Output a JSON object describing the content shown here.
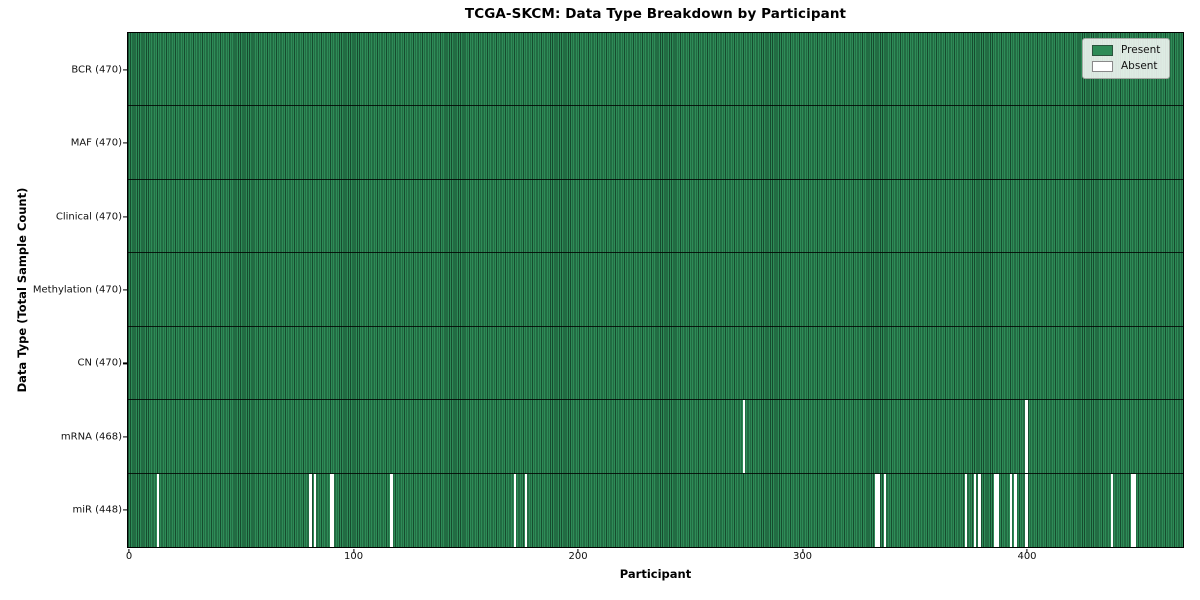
{
  "chart_data": {
    "type": "heatmap",
    "title": "TCGA-SKCM: Data Type Breakdown by Participant",
    "xlabel": "Participant",
    "ylabel": "Data Type (Total Sample Count)",
    "x_ticks": [
      0,
      100,
      200,
      300,
      400
    ],
    "x_range": [
      -0.5,
      469.5
    ],
    "n_participants": 470,
    "grid": false,
    "legend": {
      "position": "upper right",
      "entries": [
        {
          "label": "Present",
          "color": "#2e8b57"
        },
        {
          "label": "Absent",
          "color": "#ffffff"
        }
      ]
    },
    "rows": [
      {
        "label": "BCR (470)",
        "data_type": "BCR",
        "present_count": 470,
        "absent_participants": []
      },
      {
        "label": "MAF (470)",
        "data_type": "MAF",
        "present_count": 470,
        "absent_participants": []
      },
      {
        "label": "Clinical (470)",
        "data_type": "Clinical",
        "present_count": 470,
        "absent_participants": []
      },
      {
        "label": "Methylation (470)",
        "data_type": "Methylation",
        "present_count": 470,
        "absent_participants": []
      },
      {
        "label": "CN (470)",
        "data_type": "CN",
        "present_count": 470,
        "absent_participants": []
      },
      {
        "label": "mRNA (468)",
        "data_type": "mRNA",
        "present_count": 468,
        "absent_participants": [
          274,
          400
        ]
      },
      {
        "label": "miR (448)",
        "data_type": "miR",
        "present_count": 448,
        "absent_participants": [
          13,
          81,
          83,
          90,
          91,
          117,
          172,
          177,
          333,
          334,
          337,
          373,
          377,
          379,
          386,
          387,
          393,
          395,
          400,
          438,
          447,
          448
        ]
      }
    ],
    "colors": {
      "present": "#2e8b57",
      "absent": "#ffffff",
      "column_edge": "#0a2616",
      "row_separator": "#1a1a1a",
      "spine": "#000000"
    }
  }
}
